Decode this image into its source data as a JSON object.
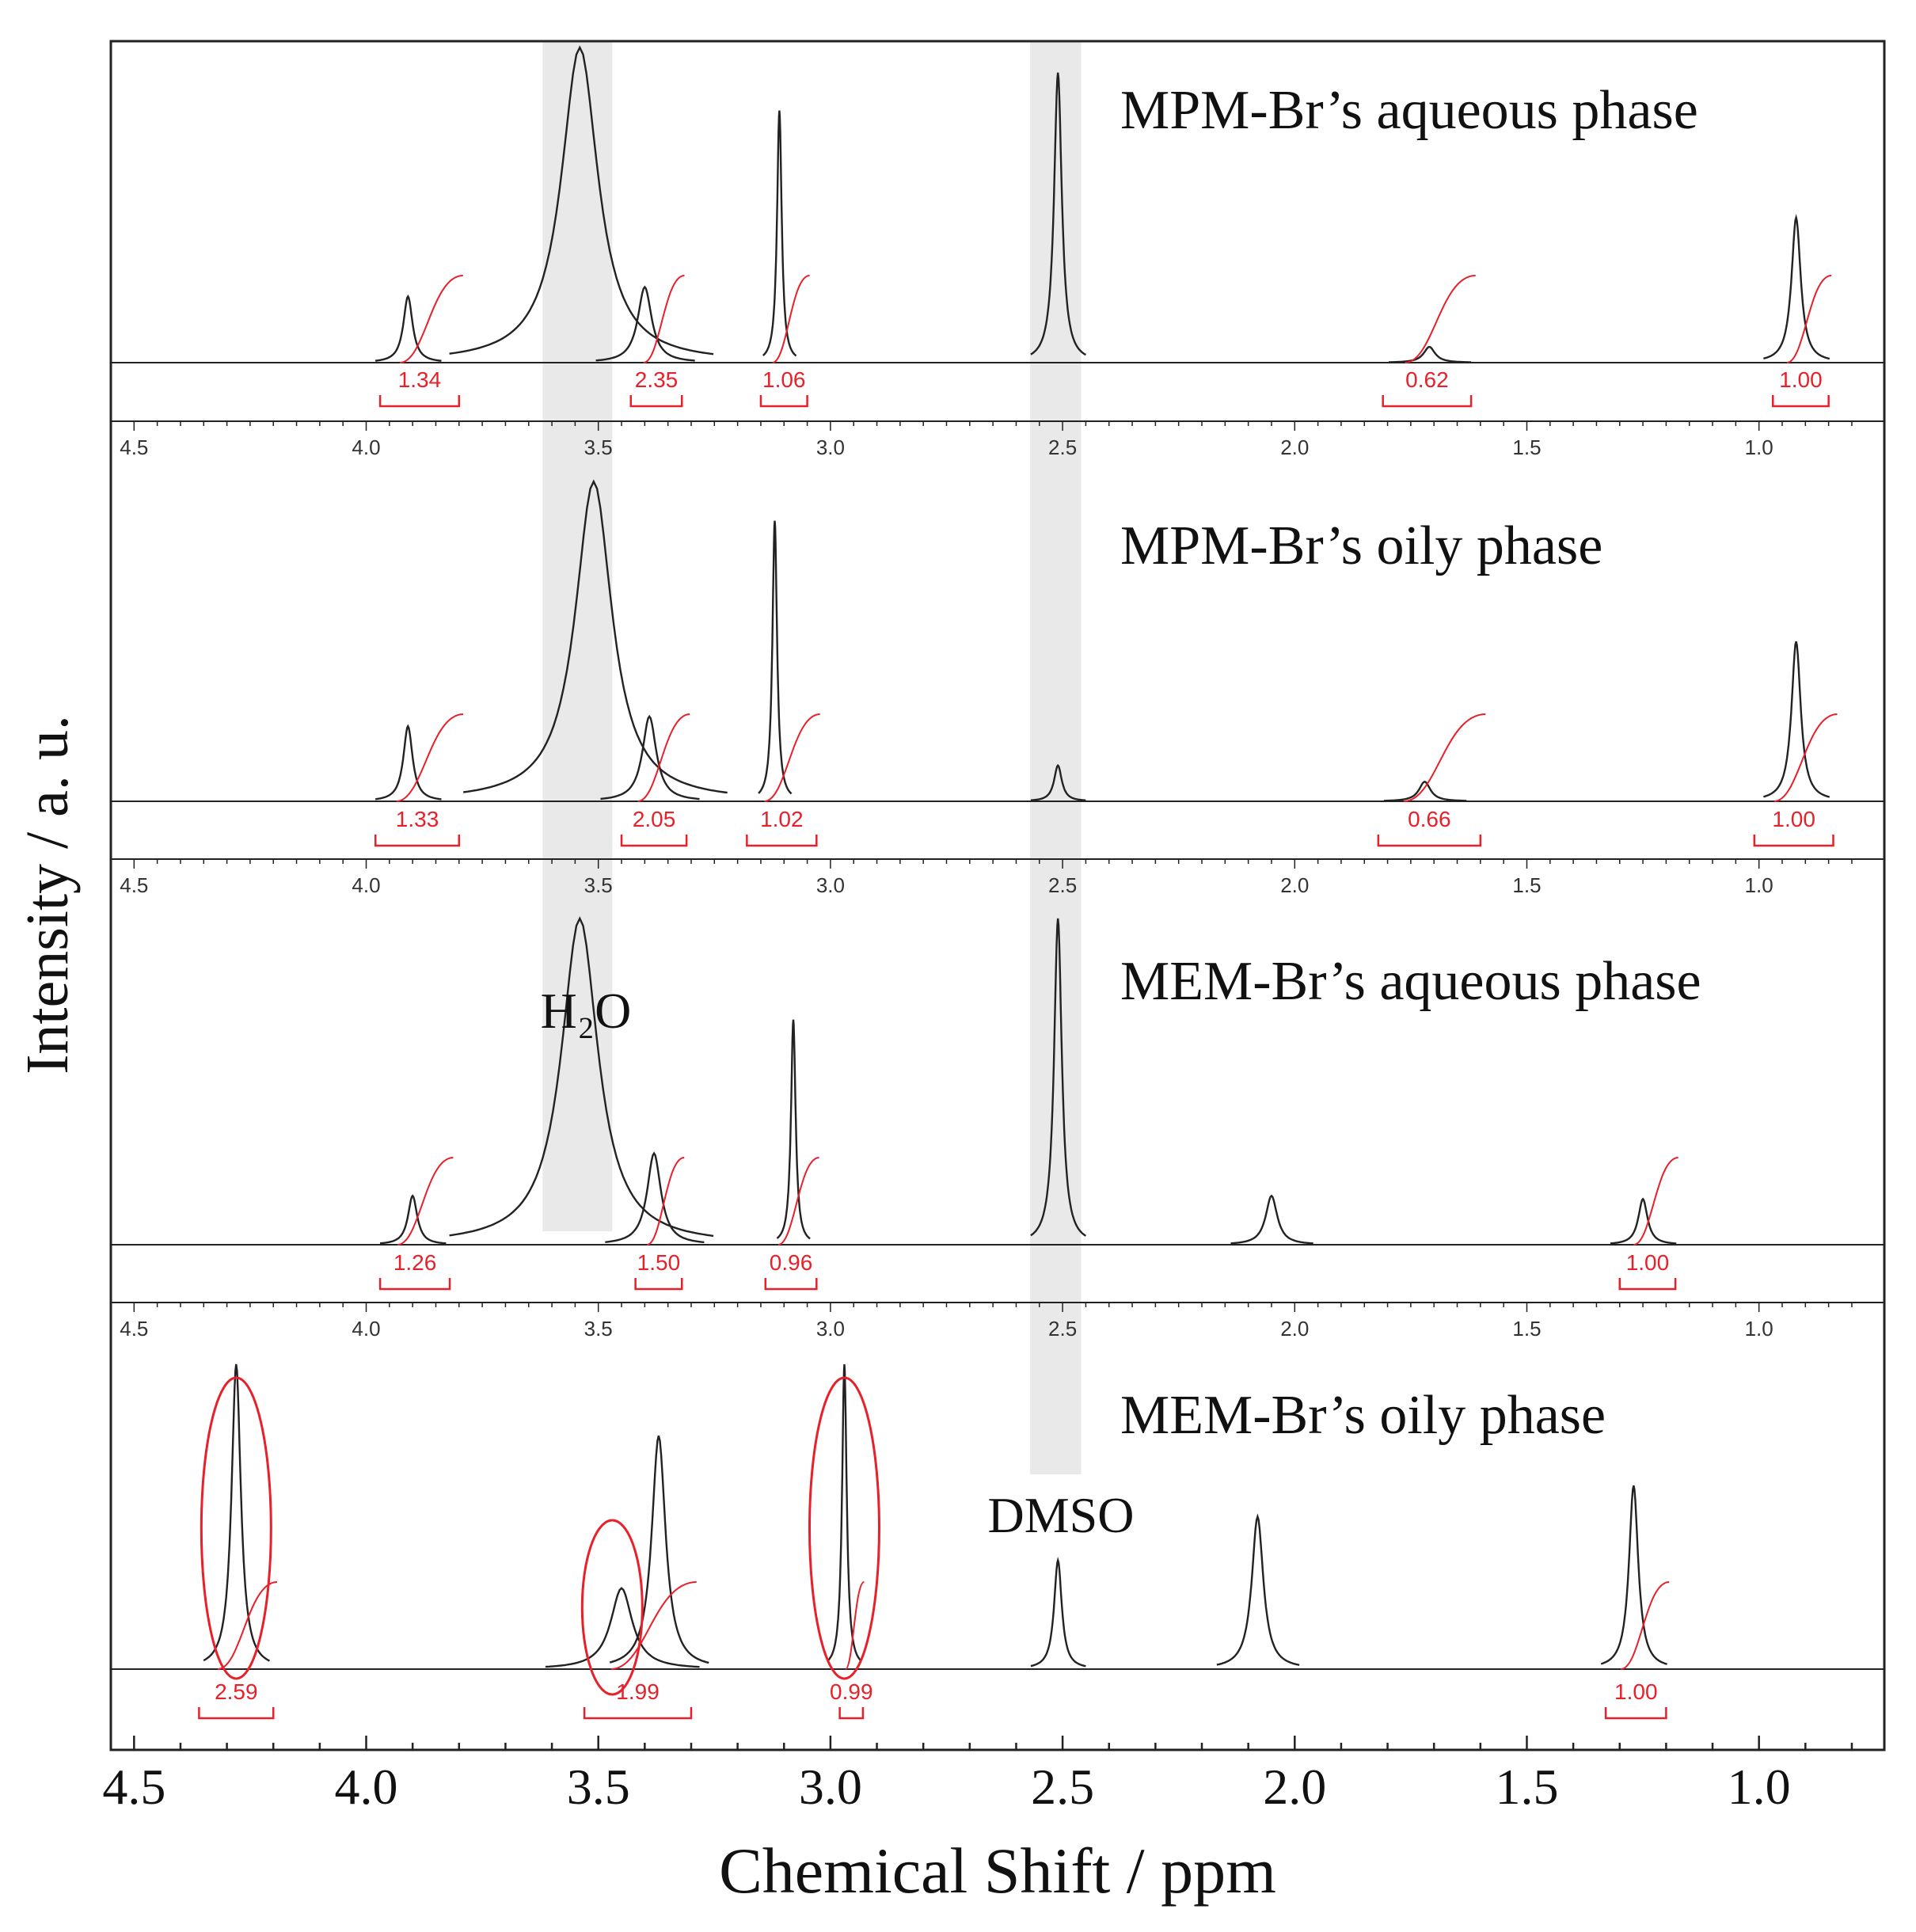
{
  "chart_data": {
    "type": "line",
    "title": "",
    "xlabel": "Chemical Shift / ppm",
    "ylabel": "Intensity / a. u.",
    "xlim": [
      4.55,
      0.73
    ],
    "x_ticks": [
      "4.5",
      "4.0",
      "3.5",
      "3.0",
      "2.5",
      "2.0",
      "1.5",
      "1.0"
    ],
    "panel_ticks": [
      "4.5",
      "4.0",
      "3.5",
      "3.0",
      "2.5",
      "2.0",
      "1.5",
      "1.0"
    ],
    "shaded_regions": [
      {
        "label": "H₂O",
        "range": [
          3.62,
          3.47
        ]
      },
      {
        "label": "DMSO",
        "range": [
          2.57,
          2.46
        ]
      }
    ],
    "panels": [
      {
        "name": "MPM-Br’s aqueous phase",
        "peaks": [
          {
            "ppm": 3.91,
            "height": 0.21
          },
          {
            "ppm": 3.54,
            "height": 1.0
          },
          {
            "ppm": 3.4,
            "height": 0.24
          },
          {
            "ppm": 3.11,
            "height": 0.8
          },
          {
            "ppm": 2.51,
            "height": 0.92
          },
          {
            "ppm": 1.71,
            "height": 0.05
          },
          {
            "ppm": 0.92,
            "height": 0.46
          }
        ],
        "integrals": [
          {
            "value": "1.34",
            "range": [
              3.97,
              3.8
            ]
          },
          {
            "value": "2.35",
            "range": [
              3.43,
              3.32
            ]
          },
          {
            "value": "1.06",
            "range": [
              3.15,
              3.05
            ]
          },
          {
            "value": "0.62",
            "range": [
              1.81,
              1.62
            ]
          },
          {
            "value": "1.00",
            "range": [
              0.97,
              0.85
            ]
          }
        ]
      },
      {
        "name": "MPM-Br’s oily phase",
        "peaks": [
          {
            "ppm": 3.91,
            "height": 0.23
          },
          {
            "ppm": 3.51,
            "height": 0.98
          },
          {
            "ppm": 3.39,
            "height": 0.26
          },
          {
            "ppm": 3.12,
            "height": 0.86
          },
          {
            "ppm": 2.51,
            "height": 0.11
          },
          {
            "ppm": 1.72,
            "height": 0.06
          },
          {
            "ppm": 0.92,
            "height": 0.49
          }
        ],
        "integrals": [
          {
            "value": "1.33",
            "range": [
              3.98,
              3.8
            ]
          },
          {
            "value": "2.05",
            "range": [
              3.45,
              3.31
            ]
          },
          {
            "value": "1.02",
            "range": [
              3.18,
              3.03
            ]
          },
          {
            "value": "0.66",
            "range": [
              1.82,
              1.6
            ]
          },
          {
            "value": "1.00",
            "range": [
              1.01,
              0.84
            ]
          }
        ]
      },
      {
        "name": "MEM-Br’s aqueous phase",
        "peaks": [
          {
            "ppm": 3.9,
            "height": 0.15
          },
          {
            "ppm": 3.54,
            "height": 1.0
          },
          {
            "ppm": 3.38,
            "height": 0.28
          },
          {
            "ppm": 3.08,
            "height": 0.69
          },
          {
            "ppm": 2.51,
            "height": 1.0
          },
          {
            "ppm": 2.05,
            "height": 0.15
          },
          {
            "ppm": 1.25,
            "height": 0.14
          }
        ],
        "integrals": [
          {
            "value": "1.26",
            "range": [
              3.97,
              3.82
            ]
          },
          {
            "value": "1.50",
            "range": [
              3.42,
              3.32
            ]
          },
          {
            "value": "0.96",
            "range": [
              3.14,
              3.03
            ]
          },
          {
            "value": "1.00",
            "range": [
              1.3,
              1.18
            ]
          }
        ]
      },
      {
        "name": "MEM-Br’s oily phase",
        "peaks": [
          {
            "ppm": 4.28,
            "height": 0.98
          },
          {
            "ppm": 3.45,
            "height": 0.26
          },
          {
            "ppm": 3.37,
            "height": 0.75
          },
          {
            "ppm": 2.97,
            "height": 0.98
          },
          {
            "ppm": 2.51,
            "height": 0.35
          },
          {
            "ppm": 2.08,
            "height": 0.49
          },
          {
            "ppm": 1.27,
            "height": 0.59
          }
        ],
        "integrals": [
          {
            "value": "2.59",
            "range": [
              4.36,
              4.2
            ]
          },
          {
            "value": "1.99",
            "range": [
              3.53,
              3.3
            ]
          },
          {
            "value": "0.99",
            "range": [
              2.98,
              2.93
            ]
          },
          {
            "value": "1.00",
            "range": [
              1.33,
              1.2
            ]
          }
        ],
        "highlighted_peaks": [
          4.28,
          3.47,
          2.97
        ]
      }
    ],
    "annotations": [
      "H₂O",
      "DMSO"
    ],
    "colors": {
      "spectrum": "#222222",
      "integral": "#e8202a",
      "shade": "#e9e9e9",
      "highlight": "#e8202a"
    }
  }
}
